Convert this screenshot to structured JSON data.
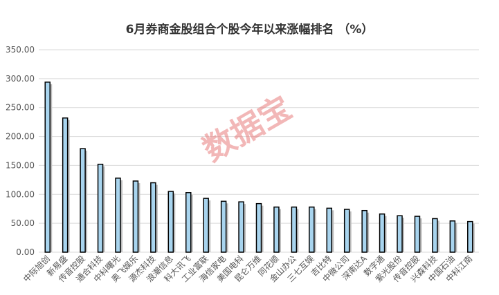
{
  "chart_data": {
    "type": "bar",
    "title": "6月券商金股组合个股今年以来涨幅排名 （%）",
    "xlabel": "",
    "ylabel": "",
    "ylim": [
      0,
      350
    ],
    "yticks": [
      "0.00",
      "50.00",
      "100.00",
      "150.00",
      "200.00",
      "250.00",
      "300.00",
      "350.00"
    ],
    "grid": true,
    "categories": [
      "中际旭创",
      "新易盛",
      "传音控股",
      "通合科技",
      "中科曙光",
      "奥飞娱乐",
      "源杰科技",
      "浪潮信息",
      "科大讯飞",
      "工业富联",
      "海信家电",
      "美国电科",
      "昆仑万维",
      "同花顺",
      "金山办公",
      "三七互娱",
      "吉比特",
      "中微公司",
      "深南达A",
      "数字通",
      "紫光股份",
      "传音控股",
      "兴森科技",
      "中国石油",
      "中科江南"
    ],
    "values": [
      294,
      232,
      179,
      152,
      128,
      123,
      120,
      105,
      103,
      93,
      88,
      87,
      84,
      78,
      78,
      78,
      76,
      74,
      72,
      66,
      63,
      62,
      58,
      54,
      53
    ],
    "colors": {
      "bar": "#a8d4ee",
      "bar_stroke": "#000000",
      "shadow": "#bdbdbd",
      "grid": "#d9d9d9"
    }
  },
  "watermark": "数据宝"
}
